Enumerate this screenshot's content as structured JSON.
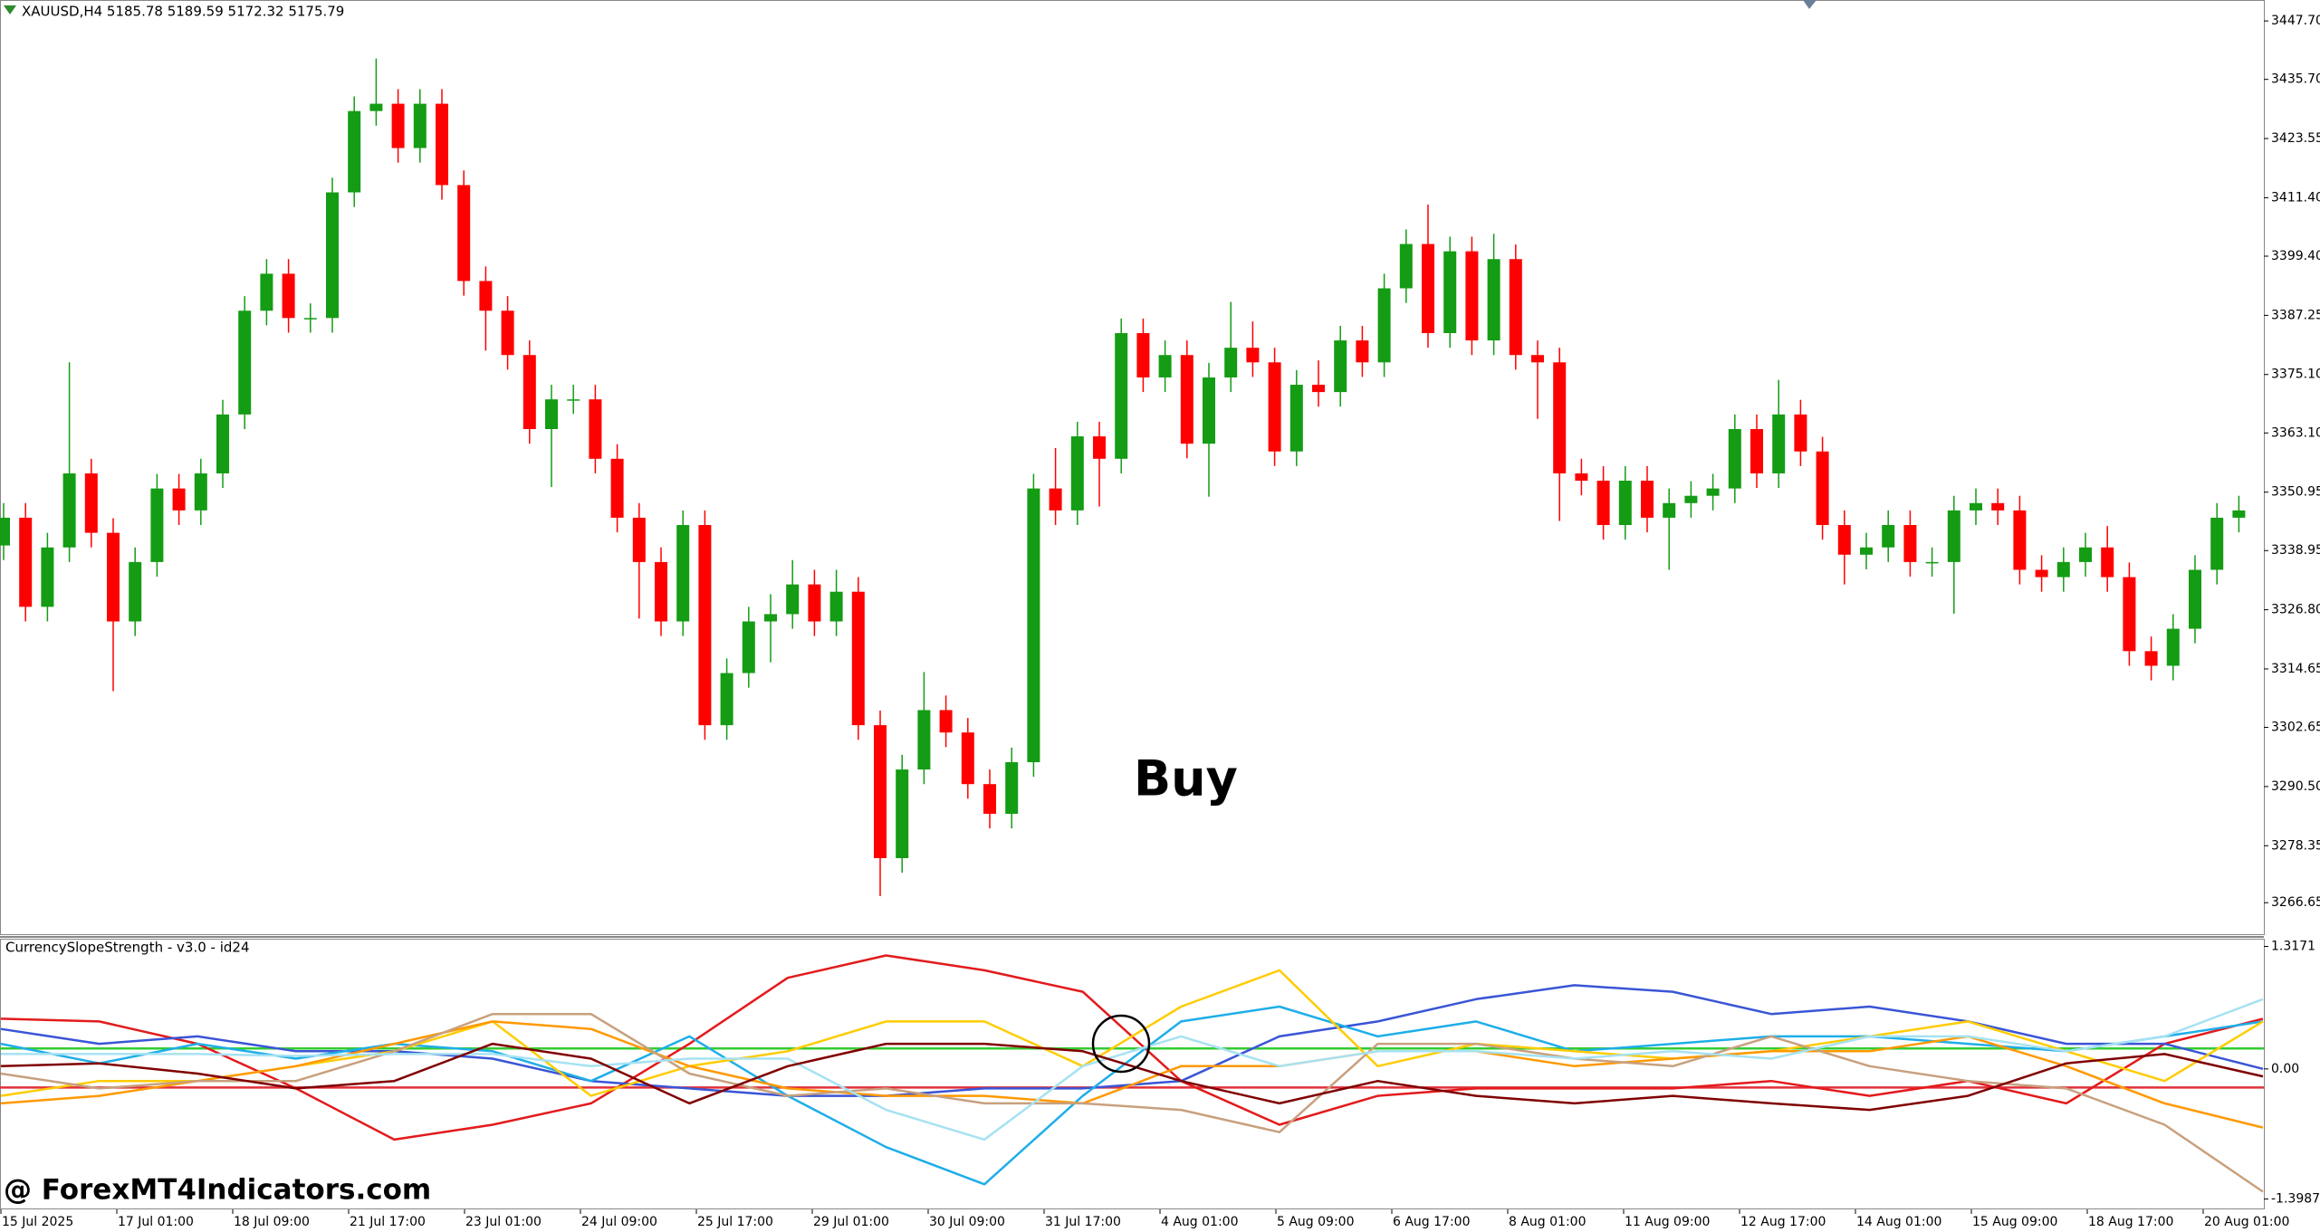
{
  "header": "XAUUSD,H4  5185.78 5189.59 5172.32 5175.79",
  "annotations": {
    "signal": "Buy",
    "watermark": "@ ForexMT4Indicators.com"
  },
  "time_axis": {
    "labels": [
      "15 Jul 2025",
      "17 Jul 01:00",
      "18 Jul 09:00",
      "21 Jul 17:00",
      "23 Jul 01:00",
      "24 Jul 09:00",
      "25 Jul 17:00",
      "29 Jul 01:00",
      "30 Jul 09:00",
      "31 Jul 17:00",
      "4 Aug 01:00",
      "5 Aug 09:00",
      "6 Aug 17:00",
      "8 Aug 01:00",
      "11 Aug 09:00",
      "12 Aug 17:00",
      "14 Aug 01:00",
      "15 Aug 09:00",
      "18 Aug 17:00",
      "20 Aug 01:00"
    ]
  },
  "chart_data": [
    {
      "type": "candlestick",
      "up_color": "#149c14",
      "down_color": "#ff0000",
      "ylim": [
        3260.0,
        3452.0
      ],
      "yticks": [
        {
          "value": 3447.7,
          "label": "3447.70"
        },
        {
          "value": 3435.7,
          "label": "3435.70"
        },
        3423.55,
        {
          "value": 3411.4,
          "label": "3411.40"
        },
        {
          "value": 3399.4,
          "label": "3399.40"
        },
        3387.25,
        {
          "value": 3375.1,
          "label": "3375.10"
        },
        {
          "value": 3363.1,
          "label": "3363.10"
        },
        3350.95,
        3338.95,
        {
          "value": 3326.8,
          "label": "3326.80"
        },
        3314.65,
        3302.65,
        {
          "value": 3290.5,
          "label": "3290.50"
        },
        3278.35,
        3266.65
      ],
      "open": [
        3340.0,
        3345.7,
        3327.4,
        3339.6,
        3354.8,
        3342.6,
        3324.4,
        3336.6,
        3351.7,
        3347.2,
        3354.8,
        3366.9,
        3388.2,
        3395.8,
        3386.7,
        3386.7,
        3412.5,
        3429.2,
        3430.7,
        3421.6,
        3430.7,
        3414.0,
        3394.3,
        3388.2,
        3379.1,
        3363.9,
        3370.0,
        3370.0,
        3357.8,
        3345.7,
        3336.6,
        3324.4,
        3344.2,
        3303.1,
        3313.8,
        3324.4,
        3325.9,
        3332.0,
        3324.4,
        3330.5,
        3303.1,
        3275.8,
        3294.0,
        3306.2,
        3301.6,
        3291.0,
        3284.9,
        3295.5,
        3351.7,
        3347.2,
        3362.4,
        3357.8,
        3383.6,
        3374.5,
        3379.1,
        3360.9,
        3374.5,
        3380.6,
        3377.6,
        3359.3,
        3373.0,
        3371.5,
        3382.1,
        3377.6,
        3392.8,
        3401.9,
        3383.6,
        3400.4,
        3382.1,
        3398.8,
        3379.1,
        3377.6,
        3354.8,
        3353.3,
        3344.2,
        3353.3,
        3345.7,
        3348.7,
        3350.2,
        3351.7,
        3363.9,
        3354.8,
        3366.9,
        3359.3,
        3344.2,
        3338.1,
        3339.6,
        3344.2,
        3336.6,
        3336.6,
        3347.2,
        3348.7,
        3347.2,
        3335.0,
        3333.5,
        3336.6,
        3339.6,
        3333.5,
        3318.3,
        3315.3,
        3322.9,
        3335.0,
        3345.7
      ],
      "high": [
        3348.7,
        3348.7,
        3342.6,
        3377.6,
        3357.8,
        3345.6,
        3339.6,
        3354.7,
        3354.7,
        3357.8,
        3369.9,
        3391.2,
        3398.8,
        3398.8,
        3389.7,
        3415.5,
        3432.2,
        3440.0,
        3433.7,
        3433.7,
        3433.7,
        3417.0,
        3397.3,
        3391.2,
        3382.1,
        3373.0,
        3373.0,
        3373.0,
        3360.8,
        3348.7,
        3339.6,
        3347.2,
        3347.2,
        3316.8,
        3327.4,
        3330.0,
        3337.0,
        3335.0,
        3335.0,
        3333.5,
        3306.1,
        3297.0,
        3314.0,
        3309.2,
        3304.6,
        3294.0,
        3298.5,
        3354.7,
        3360.0,
        3365.4,
        3365.4,
        3386.6,
        3386.6,
        3382.1,
        3382.1,
        3377.5,
        3390.0,
        3386.0,
        3380.6,
        3376.0,
        3378.0,
        3385.1,
        3385.1,
        3395.8,
        3404.9,
        3410.0,
        3403.4,
        3403.4,
        3404.0,
        3401.8,
        3382.1,
        3380.6,
        3357.8,
        3356.3,
        3356.3,
        3356.3,
        3351.7,
        3353.2,
        3354.7,
        3366.9,
        3366.9,
        3374.0,
        3369.9,
        3362.3,
        3347.2,
        3342.6,
        3347.2,
        3347.2,
        3339.6,
        3350.2,
        3351.7,
        3351.7,
        3350.2,
        3338.0,
        3339.6,
        3342.6,
        3344.0,
        3336.5,
        3321.3,
        3325.9,
        3338.0,
        3348.7,
        3350.2
      ],
      "low": [
        3337.0,
        3324.4,
        3324.4,
        3336.6,
        3339.6,
        3310.1,
        3321.4,
        3333.6,
        3344.2,
        3344.2,
        3351.8,
        3363.9,
        3385.2,
        3383.7,
        3383.7,
        3383.7,
        3409.5,
        3426.2,
        3418.6,
        3418.6,
        3411.0,
        3391.3,
        3380.0,
        3376.1,
        3360.9,
        3352.0,
        3367.0,
        3354.8,
        3342.7,
        3325.0,
        3321.4,
        3321.4,
        3300.1,
        3300.1,
        3310.8,
        3316.0,
        3322.9,
        3321.4,
        3321.4,
        3300.1,
        3268.0,
        3272.8,
        3291.0,
        3298.6,
        3288.0,
        3281.9,
        3281.9,
        3292.5,
        3344.2,
        3344.2,
        3348.0,
        3354.8,
        3371.5,
        3371.5,
        3357.9,
        3350.0,
        3371.5,
        3374.6,
        3356.3,
        3356.3,
        3368.5,
        3368.5,
        3374.6,
        3374.6,
        3389.8,
        3380.6,
        3380.6,
        3379.1,
        3379.1,
        3376.1,
        3366.0,
        3345.0,
        3350.3,
        3341.2,
        3341.2,
        3342.7,
        3335.0,
        3345.7,
        3347.2,
        3348.7,
        3351.8,
        3351.8,
        3356.3,
        3341.2,
        3332.0,
        3335.1,
        3336.6,
        3333.6,
        3333.6,
        3326.0,
        3344.2,
        3344.2,
        3332.0,
        3330.5,
        3330.5,
        3333.6,
        3330.5,
        3315.3,
        3312.3,
        3312.3,
        3319.9,
        3332.0,
        3342.7
      ],
      "close": [
        3345.7,
        3327.4,
        3339.6,
        3354.8,
        3342.6,
        3324.4,
        3336.6,
        3351.7,
        3347.2,
        3354.8,
        3366.9,
        3388.2,
        3395.8,
        3386.7,
        3386.7,
        3412.5,
        3429.2,
        3430.7,
        3421.6,
        3430.7,
        3414.0,
        3394.3,
        3388.2,
        3379.1,
        3363.9,
        3370.0,
        3370.0,
        3357.8,
        3345.7,
        3336.6,
        3324.4,
        3344.2,
        3303.1,
        3313.8,
        3324.4,
        3325.9,
        3332.0,
        3324.4,
        3330.5,
        3303.1,
        3275.8,
        3294.0,
        3306.2,
        3301.6,
        3291.0,
        3284.9,
        3295.5,
        3351.7,
        3347.2,
        3362.4,
        3357.8,
        3383.6,
        3374.5,
        3379.1,
        3360.9,
        3374.5,
        3380.6,
        3377.6,
        3359.3,
        3373.0,
        3371.5,
        3382.1,
        3377.6,
        3392.8,
        3401.9,
        3383.6,
        3400.4,
        3382.1,
        3398.8,
        3379.1,
        3377.6,
        3354.8,
        3353.3,
        3344.2,
        3353.3,
        3345.7,
        3348.7,
        3350.2,
        3351.7,
        3363.9,
        3354.8,
        3366.9,
        3359.3,
        3344.2,
        3338.1,
        3339.6,
        3344.2,
        3336.6,
        3336.6,
        3347.2,
        3348.7,
        3347.2,
        3335.0,
        3333.5,
        3336.6,
        3339.6,
        3333.5,
        3318.3,
        3315.3,
        3322.9,
        3335.0,
        3345.7,
        3347.2
      ]
    },
    {
      "type": "line",
      "title": "CurrencySlopeStrength - v3.0 - id24",
      "ylim": [
        -1.51,
        1.4
      ],
      "yticks": [
        1.3171,
        {
          "value": 0,
          "label": "0.00"
        },
        -1.3987
      ],
      "levels": [
        {
          "value": 0.22,
          "color": "#33cc33"
        },
        {
          "value": -0.2,
          "color": "#e0303a"
        }
      ],
      "series": [
        {
          "color": "#e31a1c",
          "values": [
            0.54,
            0.51,
            0.27,
            -0.21,
            -0.76,
            -0.6,
            -0.37,
            0.27,
            0.98,
            1.22,
            1.06,
            0.83,
            -0.13,
            -0.6,
            -0.29,
            -0.21,
            -0.21,
            -0.21,
            -0.13,
            -0.29,
            -0.13,
            -0.37,
            0.27,
            0.54
          ]
        },
        {
          "color": "#3a55d6",
          "values": [
            0.43,
            0.27,
            0.35,
            0.19,
            0.19,
            0.11,
            -0.13,
            -0.21,
            -0.29,
            -0.29,
            -0.21,
            -0.21,
            -0.13,
            0.35,
            0.51,
            0.75,
            0.9,
            0.83,
            0.59,
            0.67,
            0.51,
            0.27,
            0.27,
            0.0
          ]
        },
        {
          "color": "#1eaee8",
          "values": [
            0.27,
            0.06,
            0.27,
            0.11,
            0.27,
            0.19,
            -0.13,
            0.35,
            -0.29,
            -0.84,
            -1.24,
            -0.29,
            0.51,
            0.67,
            0.35,
            0.51,
            0.19,
            0.27,
            0.35,
            0.35,
            0.27,
            0.19,
            0.35,
            0.51
          ]
        },
        {
          "color": "#ffcc00",
          "values": [
            -0.29,
            -0.13,
            -0.13,
            0.03,
            0.19,
            0.51,
            -0.29,
            0.03,
            0.19,
            0.51,
            0.51,
            0.03,
            0.67,
            1.06,
            0.03,
            0.27,
            0.19,
            0.11,
            0.19,
            0.35,
            0.51,
            0.19,
            -0.13,
            0.51
          ]
        },
        {
          "color": "#ff9900",
          "values": [
            -0.37,
            -0.29,
            -0.13,
            0.03,
            0.27,
            0.51,
            0.43,
            0.03,
            -0.21,
            -0.29,
            -0.29,
            -0.37,
            0.03,
            0.03,
            0.19,
            0.19,
            0.03,
            0.11,
            0.19,
            0.19,
            0.35,
            0.03,
            -0.37,
            -0.63
          ]
        },
        {
          "color": "#c8a07e",
          "values": [
            -0.05,
            -0.21,
            -0.13,
            -0.13,
            0.19,
            0.59,
            0.59,
            -0.05,
            -0.29,
            -0.21,
            -0.37,
            -0.37,
            -0.44,
            -0.68,
            0.27,
            0.27,
            0.11,
            0.03,
            0.35,
            0.03,
            -0.13,
            -0.21,
            -0.6,
            -1.32
          ]
        },
        {
          "color": "#a6e2f2",
          "values": [
            0.16,
            0.16,
            0.16,
            0.14,
            0.16,
            0.16,
            0.03,
            0.11,
            0.11,
            -0.44,
            -0.76,
            0.03,
            0.35,
            0.03,
            0.19,
            0.19,
            0.11,
            0.19,
            0.11,
            0.35,
            0.35,
            0.19,
            0.35,
            0.75
          ]
        },
        {
          "color": "#800000",
          "values": [
            0.03,
            0.06,
            -0.05,
            -0.21,
            -0.13,
            0.27,
            0.11,
            -0.37,
            0.03,
            0.27,
            0.27,
            0.19,
            -0.13,
            -0.37,
            -0.13,
            -0.29,
            -0.37,
            -0.29,
            -0.37,
            -0.44,
            -0.29,
            0.06,
            0.16,
            -0.08
          ]
        }
      ]
    }
  ]
}
